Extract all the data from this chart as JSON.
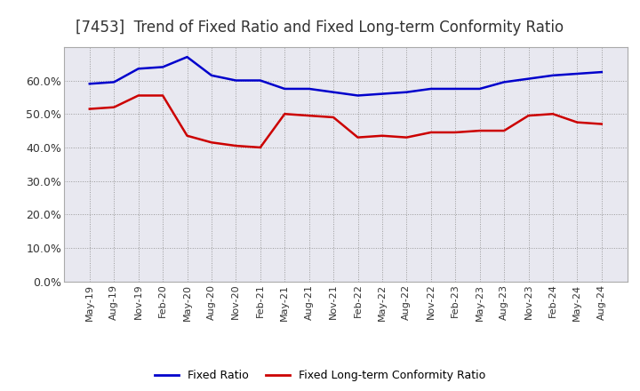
{
  "title": "[7453]  Trend of Fixed Ratio and Fixed Long-term Conformity Ratio",
  "x_labels": [
    "May-19",
    "Aug-19",
    "Nov-19",
    "Feb-20",
    "May-20",
    "Aug-20",
    "Nov-20",
    "Feb-21",
    "May-21",
    "Aug-21",
    "Nov-21",
    "Feb-22",
    "May-22",
    "Aug-22",
    "Nov-22",
    "Feb-23",
    "May-23",
    "Aug-23",
    "Nov-23",
    "Feb-24",
    "May-24",
    "Aug-24"
  ],
  "fixed_ratio": [
    59.0,
    59.5,
    63.5,
    64.0,
    67.0,
    61.5,
    60.0,
    60.0,
    57.5,
    57.5,
    56.5,
    55.5,
    56.0,
    56.5,
    57.5,
    57.5,
    57.5,
    59.5,
    60.5,
    61.5,
    62.0,
    62.5
  ],
  "fixed_lt_ratio": [
    51.5,
    52.0,
    55.5,
    55.5,
    43.5,
    41.5,
    40.5,
    40.0,
    50.0,
    49.5,
    49.0,
    43.0,
    43.5,
    43.0,
    44.5,
    44.5,
    45.0,
    45.0,
    49.5,
    50.0,
    47.5,
    47.0
  ],
  "fixed_ratio_color": "#0000cc",
  "fixed_lt_ratio_color": "#cc0000",
  "ylim": [
    0,
    70
  ],
  "yticks": [
    0,
    10,
    20,
    30,
    40,
    50,
    60
  ],
  "ytick_labels": [
    "0.0%",
    "10.0%",
    "20.0%",
    "30.0%",
    "40.0%",
    "50.0%",
    "60.0%"
  ],
  "background_color": "#ffffff",
  "plot_bg_color": "#e8e8f0",
  "grid_color": "#999999",
  "title_fontsize": 12,
  "title_color": "#333333",
  "legend_fixed_ratio": "Fixed Ratio",
  "legend_fixed_lt_ratio": "Fixed Long-term Conformity Ratio",
  "line_width": 1.8,
  "tick_fontsize": 8,
  "ytick_fontsize": 9
}
